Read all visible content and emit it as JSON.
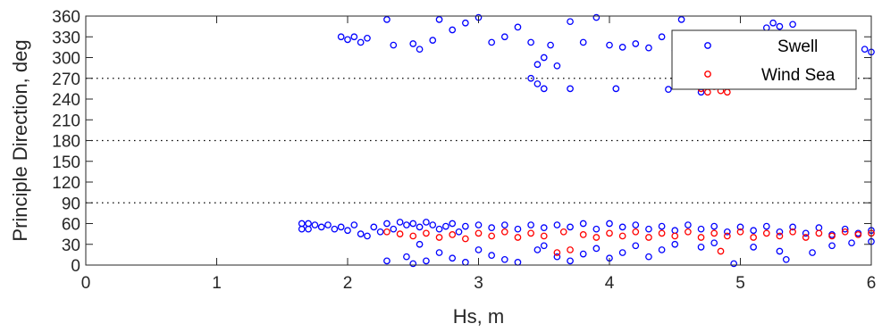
{
  "chart_data": {
    "type": "scatter",
    "title": "",
    "xlabel": "Hs, m",
    "ylabel": "Principle Direction, deg",
    "xlim": [
      0,
      6
    ],
    "ylim": [
      0,
      360
    ],
    "x_ticks": [
      0,
      1,
      2,
      3,
      4,
      5,
      6
    ],
    "y_ticks": [
      0,
      30,
      60,
      90,
      120,
      150,
      180,
      210,
      240,
      270,
      300,
      330,
      360
    ],
    "reference_lines": [
      90,
      180,
      270
    ],
    "grid": false,
    "legend_position": "top-right",
    "series": [
      {
        "name": "Swell",
        "color": "#0000ff",
        "marker": "open-circle",
        "points": [
          [
            1.65,
            60
          ],
          [
            1.65,
            52
          ],
          [
            1.7,
            60
          ],
          [
            1.7,
            52
          ],
          [
            1.75,
            58
          ],
          [
            1.8,
            55
          ],
          [
            1.85,
            58
          ],
          [
            1.9,
            52
          ],
          [
            1.95,
            55
          ],
          [
            2.0,
            50
          ],
          [
            2.05,
            58
          ],
          [
            2.1,
            45
          ],
          [
            2.15,
            42
          ],
          [
            2.2,
            55
          ],
          [
            2.25,
            48
          ],
          [
            2.3,
            60
          ],
          [
            2.35,
            52
          ],
          [
            2.4,
            62
          ],
          [
            2.45,
            58
          ],
          [
            2.5,
            60
          ],
          [
            2.55,
            55
          ],
          [
            2.6,
            62
          ],
          [
            2.65,
            58
          ],
          [
            2.7,
            52
          ],
          [
            2.75,
            56
          ],
          [
            2.8,
            60
          ],
          [
            2.85,
            48
          ],
          [
            2.9,
            56
          ],
          [
            3.0,
            58
          ],
          [
            3.1,
            54
          ],
          [
            3.2,
            58
          ],
          [
            3.3,
            52
          ],
          [
            3.4,
            58
          ],
          [
            3.5,
            54
          ],
          [
            3.6,
            58
          ],
          [
            3.7,
            55
          ],
          [
            3.8,
            60
          ],
          [
            3.9,
            52
          ],
          [
            4.0,
            60
          ],
          [
            4.1,
            55
          ],
          [
            4.2,
            58
          ],
          [
            4.3,
            52
          ],
          [
            4.4,
            56
          ],
          [
            4.5,
            50
          ],
          [
            4.6,
            58
          ],
          [
            4.7,
            52
          ],
          [
            4.8,
            56
          ],
          [
            4.9,
            48
          ],
          [
            5.0,
            55
          ],
          [
            5.1,
            50
          ],
          [
            5.2,
            56
          ],
          [
            5.3,
            48
          ],
          [
            5.4,
            55
          ],
          [
            5.5,
            46
          ],
          [
            5.6,
            54
          ],
          [
            5.7,
            44
          ],
          [
            5.8,
            52
          ],
          [
            5.9,
            46
          ],
          [
            6.0,
            50
          ],
          [
            2.3,
            6
          ],
          [
            2.45,
            12
          ],
          [
            2.5,
            2
          ],
          [
            2.55,
            30
          ],
          [
            2.6,
            6
          ],
          [
            2.7,
            18
          ],
          [
            2.8,
            10
          ],
          [
            2.9,
            4
          ],
          [
            3.0,
            22
          ],
          [
            3.1,
            14
          ],
          [
            3.2,
            8
          ],
          [
            3.3,
            4
          ],
          [
            3.45,
            22
          ],
          [
            3.5,
            28
          ],
          [
            3.6,
            12
          ],
          [
            3.7,
            6
          ],
          [
            3.8,
            16
          ],
          [
            3.9,
            24
          ],
          [
            4.0,
            10
          ],
          [
            4.1,
            18
          ],
          [
            4.2,
            28
          ],
          [
            4.3,
            12
          ],
          [
            4.4,
            22
          ],
          [
            4.5,
            30
          ],
          [
            4.7,
            26
          ],
          [
            4.8,
            32
          ],
          [
            4.95,
            2
          ],
          [
            5.1,
            26
          ],
          [
            5.3,
            20
          ],
          [
            5.35,
            8
          ],
          [
            5.55,
            18
          ],
          [
            5.7,
            28
          ],
          [
            5.85,
            32
          ],
          [
            6.0,
            34
          ],
          [
            1.95,
            330
          ],
          [
            2.0,
            326
          ],
          [
            2.05,
            330
          ],
          [
            2.1,
            322
          ],
          [
            2.15,
            328
          ],
          [
            2.3,
            355
          ],
          [
            2.35,
            318
          ],
          [
            2.5,
            320
          ],
          [
            2.55,
            312
          ],
          [
            2.65,
            325
          ],
          [
            2.7,
            355
          ],
          [
            2.8,
            340
          ],
          [
            2.9,
            350
          ],
          [
            3.0,
            358
          ],
          [
            3.1,
            322
          ],
          [
            3.2,
            330
          ],
          [
            3.3,
            344
          ],
          [
            3.4,
            322
          ],
          [
            3.45,
            290
          ],
          [
            3.5,
            300
          ],
          [
            3.55,
            318
          ],
          [
            3.6,
            288
          ],
          [
            3.7,
            352
          ],
          [
            3.8,
            322
          ],
          [
            3.9,
            358
          ],
          [
            4.0,
            318
          ],
          [
            4.05,
            255
          ],
          [
            4.1,
            315
          ],
          [
            4.2,
            320
          ],
          [
            4.3,
            314
          ],
          [
            4.4,
            330
          ],
          [
            4.45,
            254
          ],
          [
            4.5,
            310
          ],
          [
            4.6,
            316
          ],
          [
            4.7,
            250
          ],
          [
            5.2,
            343
          ],
          [
            5.25,
            350
          ],
          [
            5.3,
            345
          ],
          [
            5.4,
            348
          ],
          [
            5.8,
            322
          ],
          [
            5.95,
            312
          ],
          [
            6.0,
            308
          ],
          [
            3.4,
            270
          ],
          [
            3.45,
            262
          ],
          [
            3.5,
            255
          ],
          [
            3.7,
            255
          ],
          [
            4.55,
            355
          ]
        ]
      },
      {
        "name": "Wind Sea",
        "color": "#ff0000",
        "marker": "open-circle",
        "points": [
          [
            2.3,
            48
          ],
          [
            2.4,
            45
          ],
          [
            2.5,
            42
          ],
          [
            2.6,
            46
          ],
          [
            2.7,
            40
          ],
          [
            2.8,
            44
          ],
          [
            2.9,
            38
          ],
          [
            3.0,
            46
          ],
          [
            3.1,
            42
          ],
          [
            3.2,
            48
          ],
          [
            3.3,
            40
          ],
          [
            3.4,
            46
          ],
          [
            3.5,
            42
          ],
          [
            3.6,
            18
          ],
          [
            3.65,
            48
          ],
          [
            3.7,
            22
          ],
          [
            3.8,
            44
          ],
          [
            3.9,
            40
          ],
          [
            4.0,
            46
          ],
          [
            4.1,
            42
          ],
          [
            4.2,
            48
          ],
          [
            4.3,
            40
          ],
          [
            4.4,
            46
          ],
          [
            4.5,
            42
          ],
          [
            4.6,
            48
          ],
          [
            4.7,
            40
          ],
          [
            4.8,
            46
          ],
          [
            4.85,
            20
          ],
          [
            4.9,
            42
          ],
          [
            5.0,
            48
          ],
          [
            5.1,
            40
          ],
          [
            5.2,
            46
          ],
          [
            5.3,
            42
          ],
          [
            5.4,
            48
          ],
          [
            5.5,
            40
          ],
          [
            5.6,
            46
          ],
          [
            5.7,
            42
          ],
          [
            5.8,
            48
          ],
          [
            5.9,
            44
          ],
          [
            6.0,
            46
          ],
          [
            4.7,
            255
          ],
          [
            4.75,
            250
          ],
          [
            4.8,
            258
          ],
          [
            4.85,
            252
          ],
          [
            4.9,
            250
          ],
          [
            4.65,
            262
          ]
        ]
      }
    ]
  }
}
